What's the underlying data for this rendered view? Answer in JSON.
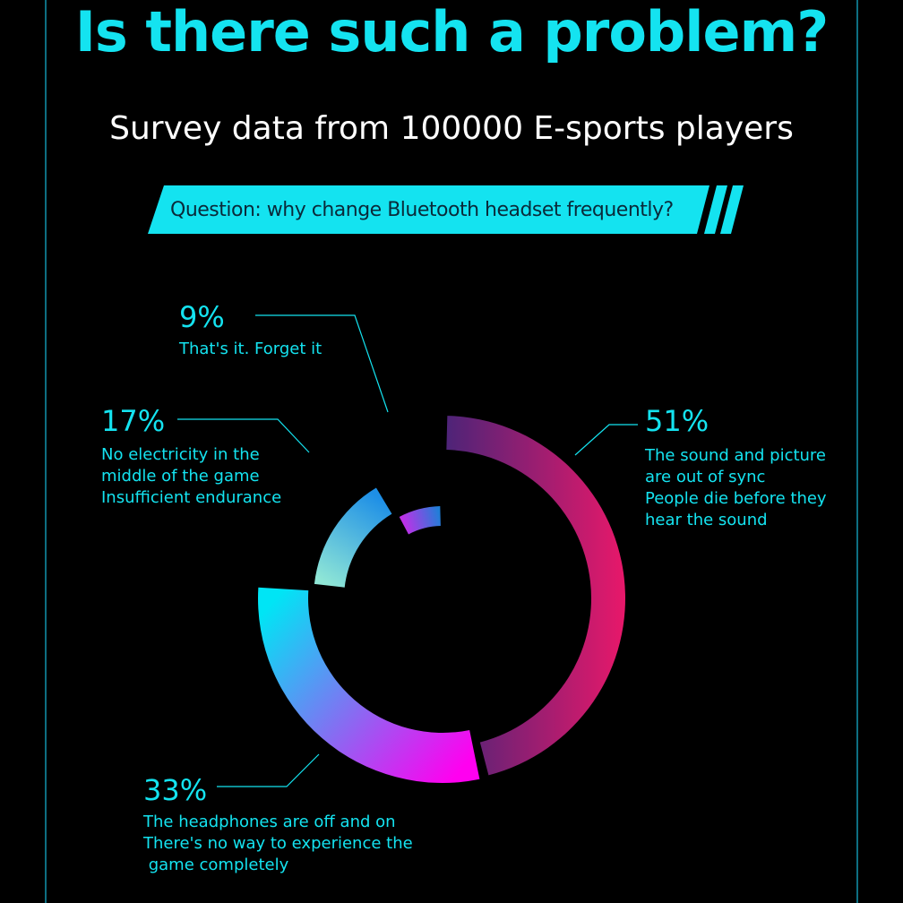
{
  "header": {
    "title": "Is there such a problem?",
    "subtitle": "Survey data from 100000 E-sports players",
    "question": "Question: why change Bluetooth headset frequently?"
  },
  "colors": {
    "accent": "#14e3f0",
    "background": "#000000",
    "frame": "#0e6f82"
  },
  "chart_data": {
    "type": "pie",
    "style": "donut",
    "categories": [
      "The sound and picture are out of sync People die before they hear the sound",
      "The headphones are off and on There's no way to experience the game completely",
      "No electricity in the middle of the game Insufficient endurance",
      "That's it. Forget it"
    ],
    "values": [
      51,
      33,
      17,
      9
    ],
    "labels": [
      "51%",
      "33%",
      "17%",
      "9%"
    ],
    "descriptions": [
      [
        "The sound and picture",
        "are out of sync",
        "People die before they",
        "hear the sound"
      ],
      [
        "The headphones are off and on",
        "There's no way to experience the",
        " game completely"
      ],
      [
        "No electricity in the",
        "middle of the game",
        "Insufficient endurance"
      ],
      [
        "That's it. Forget it"
      ]
    ],
    "segment_colors": [
      [
        "#4a2478",
        "#e8186a"
      ],
      [
        "#00e5f5",
        "#ff00f0"
      ],
      [
        "#1e8fe6",
        "#8fe6d6"
      ],
      [
        "#1f7fd8",
        "#c030e8"
      ]
    ]
  }
}
